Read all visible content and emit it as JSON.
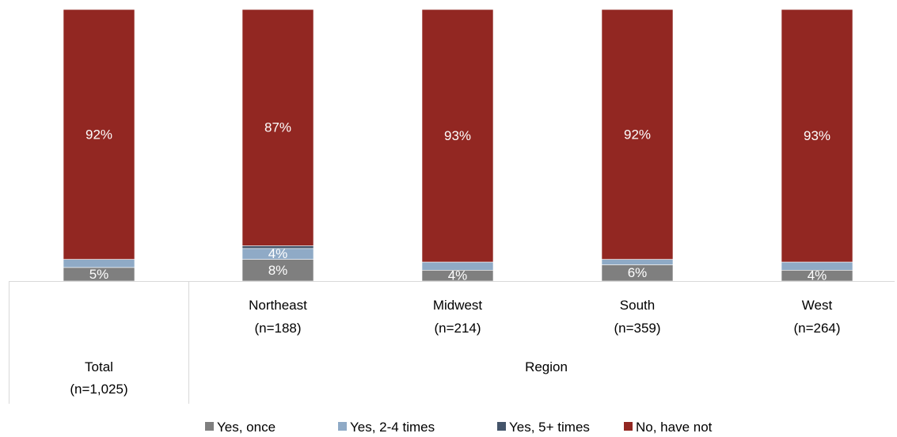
{
  "chart_data": {
    "type": "bar",
    "stacked": true,
    "percent_scale": true,
    "ylim": [
      0,
      100
    ],
    "grid": false,
    "legend_position": "bottom",
    "categories": [
      {
        "label": "",
        "n": ""
      },
      {
        "label": "Northeast",
        "n": "(n=188)"
      },
      {
        "label": "Midwest",
        "n": "(n=214)"
      },
      {
        "label": "South",
        "n": "(n=359)"
      },
      {
        "label": "West",
        "n": "(n=264)"
      }
    ],
    "groups": [
      {
        "label": "Total",
        "n": "(n=1,025)"
      },
      {
        "label": "Region"
      }
    ],
    "series": [
      {
        "name": "Yes, once",
        "color": "#7f7f7f",
        "values": [
          5,
          8,
          4,
          6,
          4
        ],
        "labels": [
          "5%",
          "8%",
          "4%",
          "6%",
          "4%"
        ]
      },
      {
        "name": "Yes, 2-4 times",
        "color": "#8faac6",
        "values": [
          3,
          4,
          3,
          2,
          3
        ],
        "labels": [
          "",
          "4%",
          "",
          "",
          ""
        ]
      },
      {
        "name": "Yes, 5+ times",
        "color": "#44546a",
        "values": [
          0,
          1,
          0,
          0,
          0
        ],
        "labels": [
          "",
          "",
          "",
          "",
          ""
        ]
      },
      {
        "name": "No, have not",
        "color": "#922722",
        "values": [
          92,
          87,
          93,
          92,
          93
        ],
        "labels": [
          "92%",
          "87%",
          "93%",
          "92%",
          "93%"
        ]
      }
    ]
  }
}
